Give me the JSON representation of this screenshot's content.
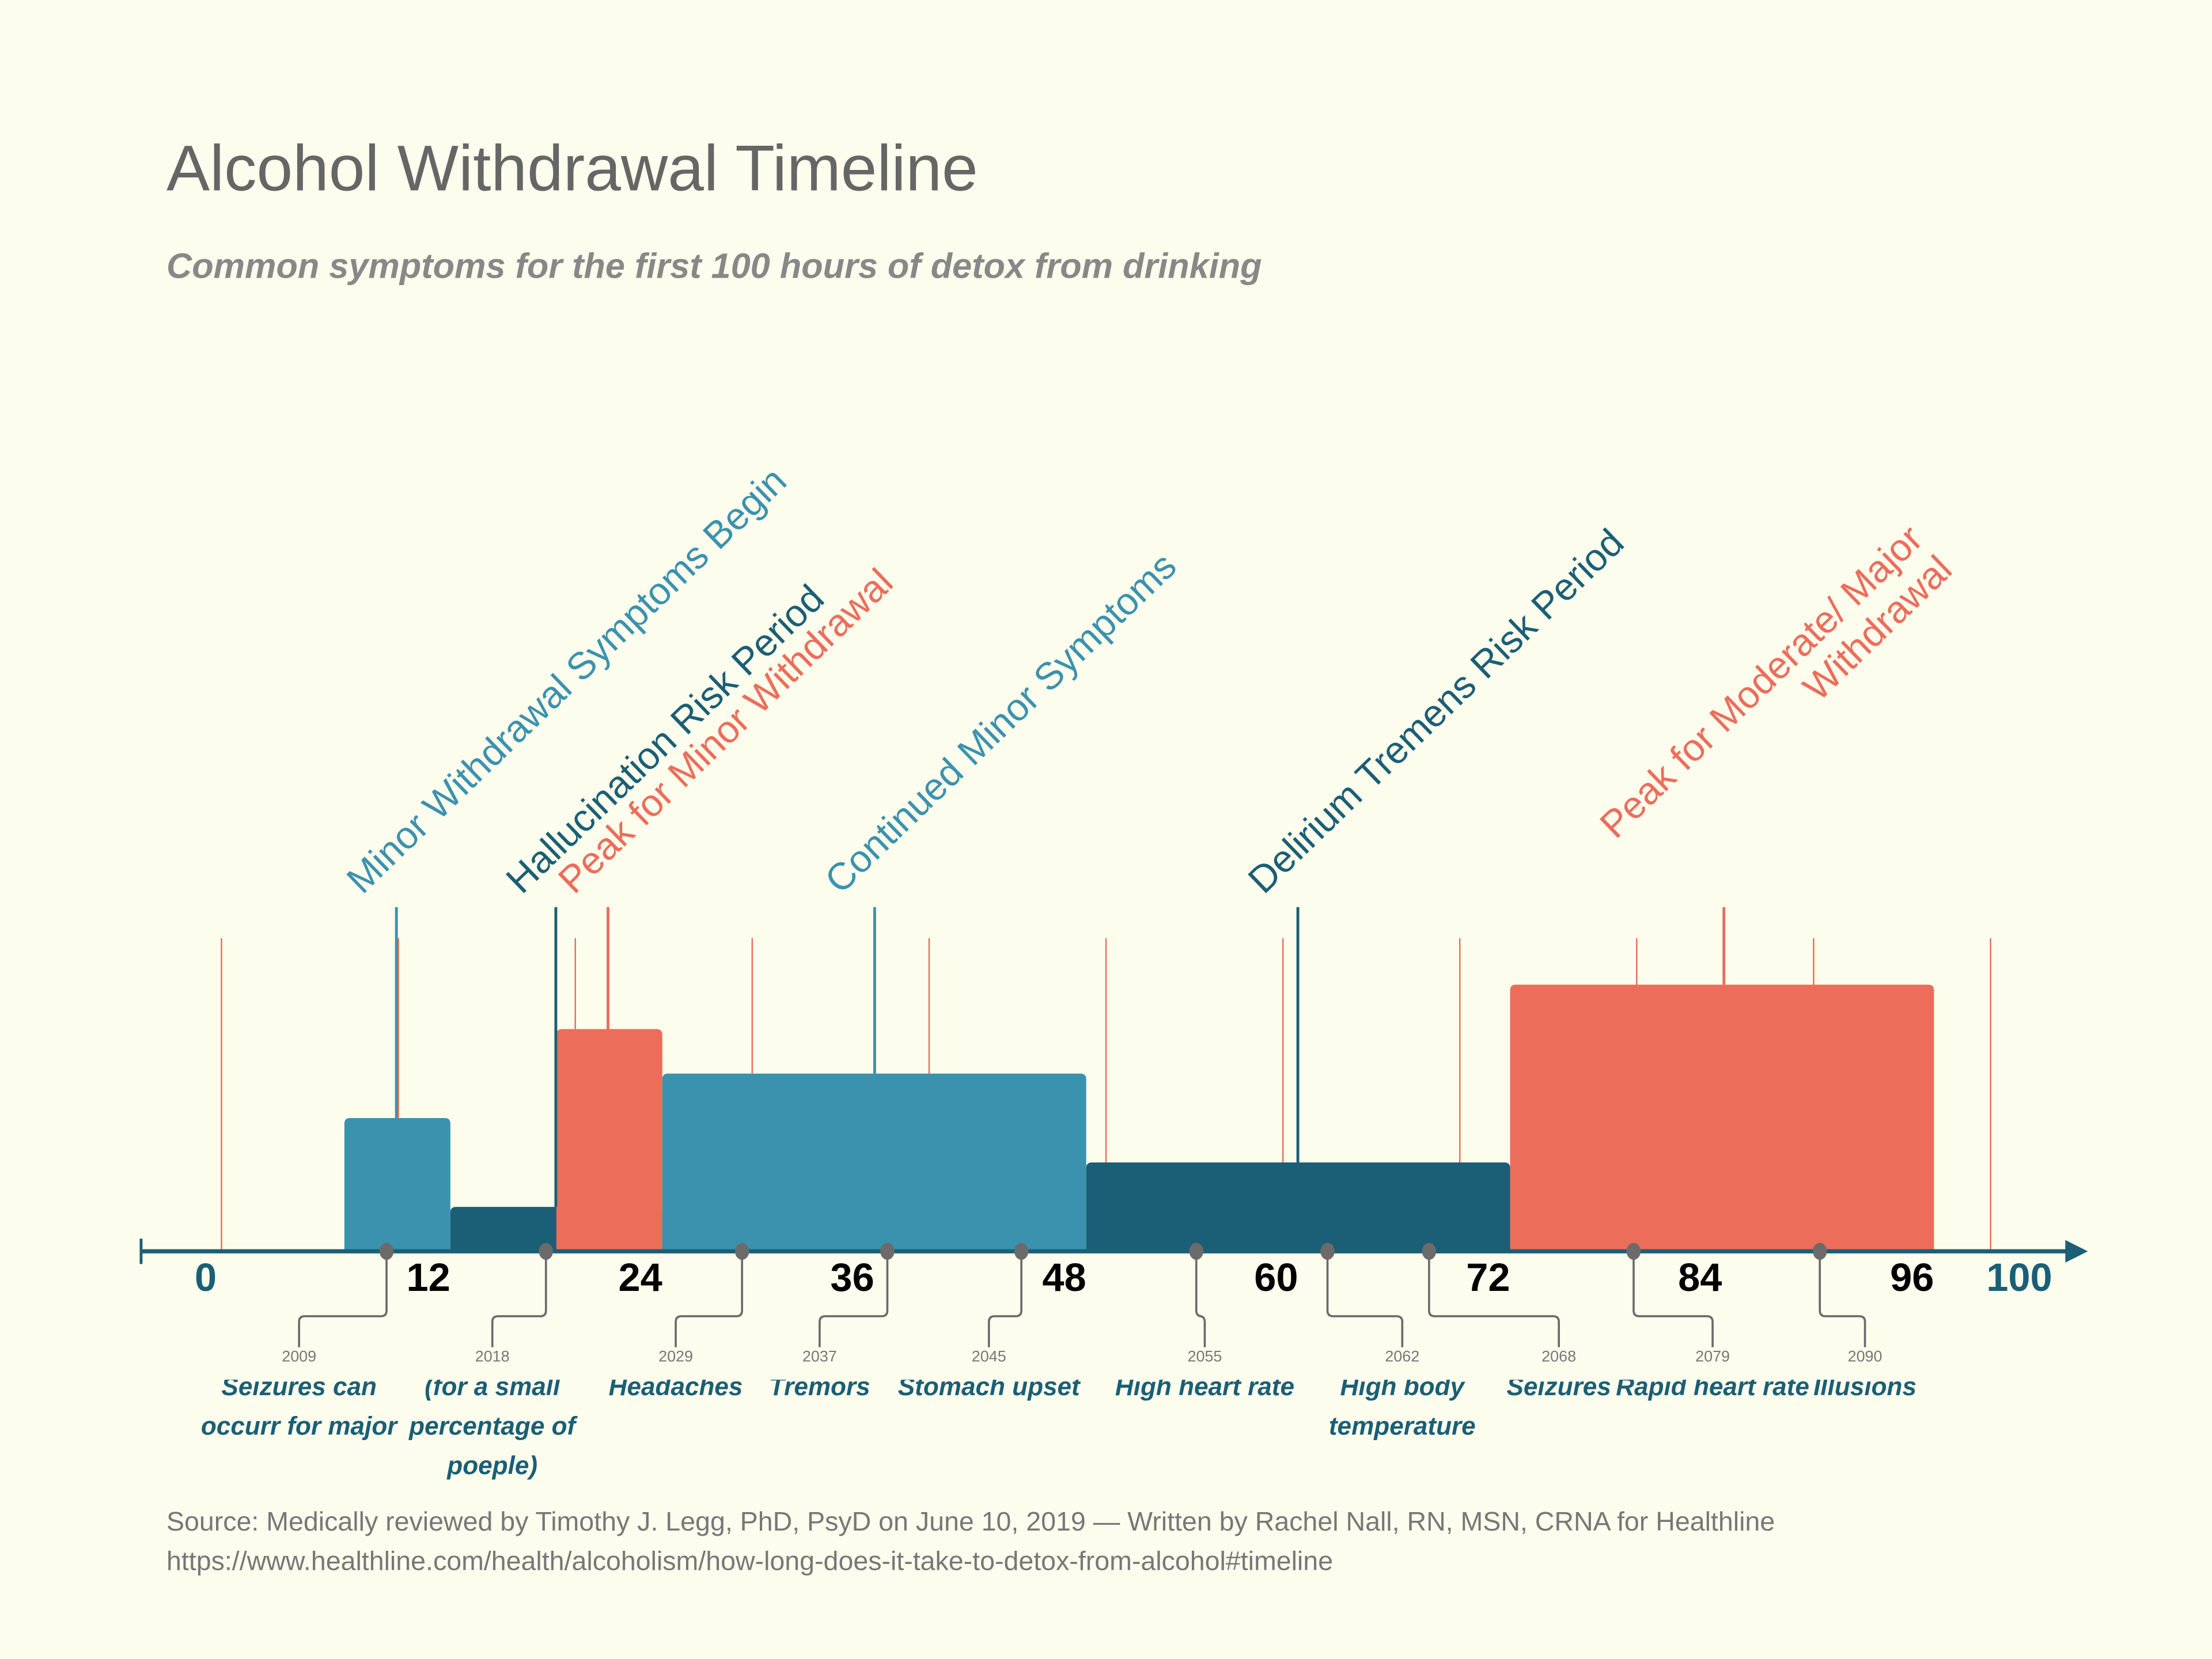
{
  "title": "Alcohol Withdrawal Timeline",
  "subtitle": "Common symptoms for the first 100 hours of detox from drinking",
  "colors": {
    "background": "#fdfdee",
    "teal": "#3b92ae",
    "dark_teal": "#1a5f75",
    "coral": "#ec6d5a",
    "gray": "#6b6b6b"
  },
  "chart_data": {
    "type": "timeline",
    "x_unit": "hours",
    "xlim": [
      0,
      100
    ],
    "tick_labels": [
      "0",
      "12",
      "24",
      "36",
      "48",
      "60",
      "72",
      "84",
      "96",
      "100"
    ],
    "ticks": [
      0,
      12,
      24,
      36,
      48,
      60,
      72,
      84,
      96,
      100
    ],
    "periods": [
      {
        "label": "Minor Withdrawal Symptoms Begin",
        "start": 6,
        "end": 12,
        "level": 3,
        "color": "#3b92ae"
      },
      {
        "label": "Hallucination Risk Period",
        "start": 12,
        "end": 24,
        "level": 1,
        "color": "#1a5f75"
      },
      {
        "label": "Peak for Minor Withdrawal",
        "start": 18,
        "end": 24,
        "level": 5,
        "color": "#ec6d5a"
      },
      {
        "label": "Continued Minor Symptoms",
        "start": 24,
        "end": 48,
        "level": 4,
        "color": "#3b92ae"
      },
      {
        "label": "Delirium Tremens Risk Period",
        "start": 48,
        "end": 72,
        "level": 2,
        "color": "#1a5f75"
      },
      {
        "label": "Peak for Moderate/ Major Withdrawal",
        "start": 72,
        "end": 96,
        "level": 6,
        "color": "#ec6d5a"
      }
    ],
    "annotations": [
      {
        "number": "2009",
        "text": "Seizures can occurr for major"
      },
      {
        "number": "2018",
        "text": "(for a small percentage of poeple)"
      },
      {
        "number": "2029",
        "text": "Headaches"
      },
      {
        "number": "2037",
        "text": "Tremors"
      },
      {
        "number": "2045",
        "text": "Stomach upset"
      },
      {
        "number": "2055",
        "text": "High heart rate"
      },
      {
        "number": "2062",
        "text": "High body temperature"
      },
      {
        "number": "2068",
        "text": "Seizures"
      },
      {
        "number": "2079",
        "text": "Rapid heart rate"
      },
      {
        "number": "2090",
        "text": "Illusions"
      }
    ]
  },
  "source": {
    "line1": "Source: Medically reviewed by Timothy J. Legg, PhD, PsyD on June 10, 2019 — Written by Rachel Nall, RN, MSN, CRNA for Healthline",
    "line2": "https://www.healthline.com/health/alcoholism/how-long-does-it-take-to-detox-from-alcohol#timeline"
  }
}
